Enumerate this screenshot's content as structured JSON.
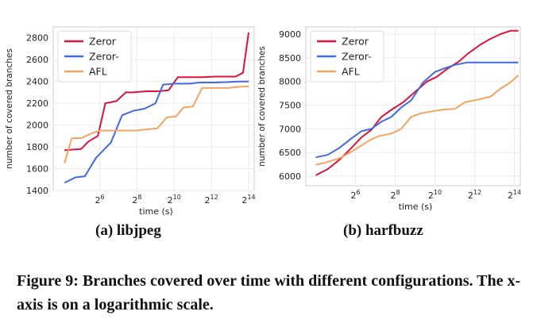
{
  "figure": {
    "subcaption_a": "(a) libjpeg",
    "subcaption_b": "(b) harfbuzz",
    "caption": "Figure 9: Branches covered over time with different configurations. The x-axis is on a logarithmic scale."
  },
  "colors": {
    "Zeror": "#dc143c",
    "Zeror-": "#4169e1",
    "AFL": "#f4a460",
    "grid": "#ebebeb",
    "axes": "#cccccc"
  },
  "chart_data": [
    {
      "type": "line",
      "title": "",
      "xlabel": "time (s)",
      "ylabel": "number of covered branches",
      "xscale": "log2",
      "xlim": [
        3.5,
        14.3
      ],
      "ylim": [
        1400,
        2900
      ],
      "xticks": [
        {
          "exp": 6,
          "label": "6"
        },
        {
          "exp": 8,
          "label": "8"
        },
        {
          "exp": 10,
          "label": "10"
        },
        {
          "exp": 12,
          "label": "12"
        },
        {
          "exp": 14,
          "label": "14"
        }
      ],
      "tick_base": "2",
      "yticks": [
        1400,
        1600,
        1800,
        2000,
        2200,
        2400,
        2600,
        2800
      ],
      "grid": true,
      "legend": "top-left",
      "series": [
        {
          "name": "Zeror",
          "x": [
            4.1,
            5.0,
            5.4,
            5.9,
            6.3,
            6.9,
            7.4,
            7.8,
            8.5,
            9.2,
            9.7,
            10.2,
            10.9,
            11.5,
            12.2,
            12.8,
            13.3,
            13.7,
            14.0
          ],
          "y": [
            1770,
            1780,
            1850,
            1900,
            2200,
            2220,
            2300,
            2300,
            2310,
            2310,
            2320,
            2440,
            2440,
            2440,
            2445,
            2445,
            2445,
            2480,
            2850
          ]
        },
        {
          "name": "Zeror-",
          "x": [
            4.1,
            4.7,
            5.2,
            5.8,
            6.6,
            7.2,
            7.8,
            8.4,
            9.0,
            9.4,
            10.0,
            10.8,
            11.4,
            12.2,
            12.9,
            13.4,
            13.8,
            14.0
          ],
          "y": [
            1470,
            1520,
            1530,
            1700,
            1840,
            2090,
            2130,
            2150,
            2200,
            2370,
            2380,
            2380,
            2390,
            2390,
            2395,
            2400,
            2400,
            2400
          ]
        },
        {
          "name": "AFL",
          "x": [
            4.1,
            4.5,
            5.0,
            5.5,
            6.0,
            6.6,
            7.2,
            7.9,
            8.5,
            9.1,
            9.6,
            10.1,
            10.5,
            11.0,
            11.5,
            12.2,
            12.9,
            13.4,
            14.0
          ],
          "y": [
            1650,
            1880,
            1880,
            1920,
            1950,
            1950,
            1950,
            1950,
            1960,
            1970,
            2070,
            2080,
            2160,
            2170,
            2340,
            2340,
            2340,
            2350,
            2355
          ]
        }
      ]
    },
    {
      "type": "line",
      "title": "",
      "xlabel": "time (s)",
      "ylabel": "number of covered branches",
      "xscale": "log2",
      "xlim": [
        3.5,
        14.3
      ],
      "ylim": [
        5800,
        9150
      ],
      "xticks": [
        {
          "exp": 6,
          "label": "6"
        },
        {
          "exp": 8,
          "label": "8"
        },
        {
          "exp": 10,
          "label": "10"
        },
        {
          "exp": 12,
          "label": "12"
        },
        {
          "exp": 14,
          "label": "14"
        }
      ],
      "tick_base": "2",
      "yticks": [
        6000,
        6500,
        7000,
        7500,
        8000,
        8500,
        9000
      ],
      "grid": true,
      "legend": "top-left",
      "series": [
        {
          "name": "Zeror",
          "x": [
            4.0,
            4.6,
            5.2,
            5.8,
            6.3,
            6.8,
            7.3,
            7.8,
            8.4,
            9.0,
            9.6,
            10.1,
            10.6,
            11.2,
            11.7,
            12.3,
            12.8,
            13.3,
            13.8,
            14.2
          ],
          "y": [
            6020,
            6150,
            6350,
            6600,
            6820,
            6980,
            7250,
            7400,
            7560,
            7780,
            8000,
            8100,
            8260,
            8420,
            8600,
            8780,
            8900,
            9000,
            9070,
            9070
          ]
        },
        {
          "name": "Zeror-",
          "x": [
            4.0,
            4.6,
            5.2,
            5.8,
            6.3,
            6.8,
            7.3,
            7.8,
            8.3,
            8.8,
            9.4,
            10.0,
            10.5,
            11.0,
            11.6,
            12.2,
            12.8,
            13.4,
            14.0,
            14.2
          ],
          "y": [
            6400,
            6450,
            6600,
            6800,
            6950,
            7000,
            7150,
            7250,
            7450,
            7600,
            7980,
            8200,
            8280,
            8350,
            8400,
            8400,
            8400,
            8400,
            8400,
            8400
          ]
        },
        {
          "name": "AFL",
          "x": [
            4.0,
            4.6,
            5.2,
            5.8,
            6.3,
            6.8,
            7.2,
            7.8,
            8.3,
            8.8,
            9.3,
            10.0,
            10.5,
            11.0,
            11.5,
            12.2,
            12.8,
            13.3,
            13.8,
            14.2
          ],
          "y": [
            6240,
            6300,
            6380,
            6520,
            6650,
            6780,
            6850,
            6900,
            7000,
            7250,
            7330,
            7380,
            7410,
            7420,
            7560,
            7620,
            7680,
            7850,
            7980,
            8130
          ]
        }
      ]
    }
  ]
}
